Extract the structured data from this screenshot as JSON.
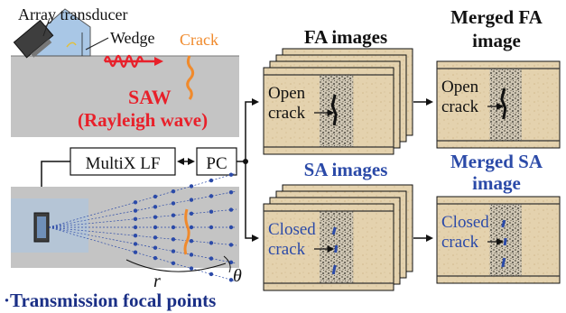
{
  "labels": {
    "array_transducer": "Array transducer",
    "wedge": "Wedge",
    "crack": "Crack",
    "saw": "SAW",
    "rayleigh": "(Rayleigh wave)",
    "multix": "MultiX LF",
    "pc": "PC",
    "fa_images": "FA images",
    "merged_fa_line1": "Merged FA",
    "merged_fa_line2": "image",
    "sa_images": "SA images",
    "merged_sa_line1": "Merged SA",
    "merged_sa_line2": "image",
    "open_line1": "Open",
    "open_line2": "crack",
    "closed_line1": "Closed",
    "closed_line2": "crack",
    "r_symbol": "r",
    "theta_symbol": "θ",
    "focal_points": "·Transmission focal points"
  },
  "colors": {
    "red": "#e8202a",
    "orange": "#f08a2c",
    "blue": "#2b4aa8",
    "dark_blue": "#1a2f86",
    "gray_specimen": "#c4c4c4",
    "sand": "#e6d4b2",
    "dark": "#111111"
  }
}
